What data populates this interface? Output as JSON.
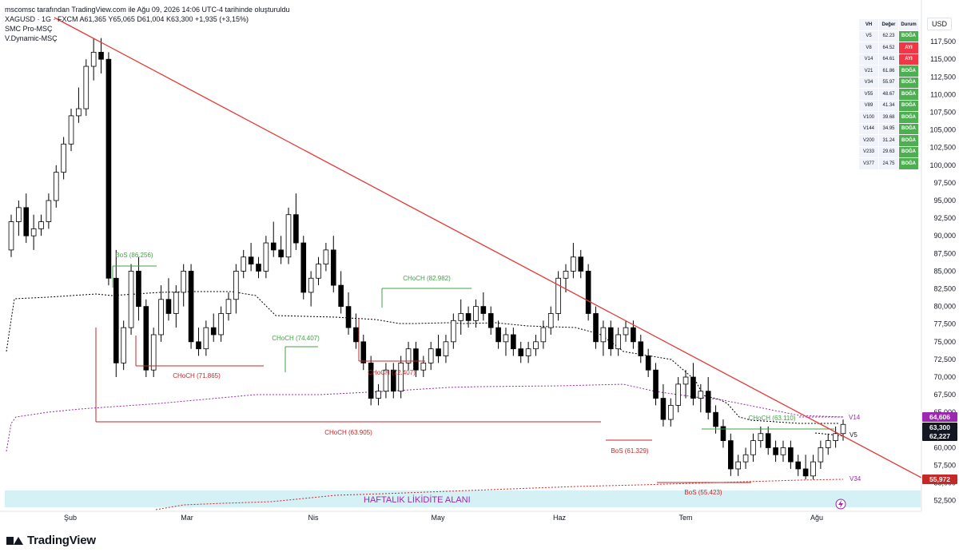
{
  "header": {
    "attribution": "mscomsc tarafından TradingView.com ile Ağu 09, 2026 14:06 UTC-4 tarihinde oluşturuldu",
    "symbol_line": "XAGUSD · 1G · FXCM  A61,365  Y65,065  D61,004  K63,300  +1,935 (+3,15%)",
    "indicator1": "SMC Pro-MSÇ",
    "indicator2": "V.Dynamic-MSÇ"
  },
  "currency": "USD",
  "brand": "TradingView",
  "colors": {
    "up": "#ffffff",
    "down": "#000000",
    "trendline": "#e53935",
    "bullish": "#43a047",
    "bearish": "#c62828",
    "purple": "#9c27b0",
    "zone": "#d6f1f6"
  },
  "ma_table": {
    "headers": [
      "VH",
      "Değer",
      "Durum"
    ],
    "rows": [
      {
        "name": "V5",
        "value": "62.23",
        "status": "BOĞA",
        "bull": true
      },
      {
        "name": "V8",
        "value": "64.52",
        "status": "AYI",
        "bull": false
      },
      {
        "name": "V14",
        "value": "64.61",
        "status": "AYI",
        "bull": false
      },
      {
        "name": "V21",
        "value": "61.86",
        "status": "BOĞA",
        "bull": true
      },
      {
        "name": "V34",
        "value": "55.97",
        "status": "BOĞA",
        "bull": true
      },
      {
        "name": "V55",
        "value": "48.67",
        "status": "BOĞA",
        "bull": true
      },
      {
        "name": "V89",
        "value": "41.34",
        "status": "BOĞA",
        "bull": true
      },
      {
        "name": "V100",
        "value": "39.68",
        "status": "BOĞA",
        "bull": true
      },
      {
        "name": "V144",
        "value": "34.95",
        "status": "BOĞA",
        "bull": true
      },
      {
        "name": "V200",
        "value": "31.24",
        "status": "BOĞA",
        "bull": true
      },
      {
        "name": "V233",
        "value": "29.63",
        "status": "BOĞA",
        "bull": true
      },
      {
        "name": "V377",
        "value": "24.75",
        "status": "BOĞA",
        "bull": true
      }
    ]
  },
  "chart_data": {
    "type": "candlestick",
    "y_axis_ticks": [
      "117,500",
      "115,000",
      "112,500",
      "110,000",
      "107,500",
      "105,000",
      "102,500",
      "100,000",
      "97,500",
      "95,000",
      "92,500",
      "90,000",
      "87,500",
      "85,000",
      "82,500",
      "80,000",
      "77,500",
      "75,000",
      "72,500",
      "70,000",
      "67,500",
      "65,000",
      "62,500",
      "60,000",
      "57,500",
      "55,000",
      "52,500"
    ],
    "y_range": [
      51000,
      120000
    ],
    "x_axis_labels": [
      "Şub",
      "Mar",
      "Nis",
      "May",
      "Haz",
      "Tem",
      "Ağu"
    ],
    "price_tags": [
      {
        "value": "64,606",
        "color": "#9c27b0"
      },
      {
        "value": "63,300",
        "color": "#131722"
      },
      {
        "value": "62,227",
        "color": "#131722"
      },
      {
        "value": "55,972",
        "color": "#c62828"
      }
    ],
    "annotations": {
      "bos1": "BoS (86.256)",
      "choch1": "CHoCH (71.865)",
      "choch2": "CHoCH (74.407)",
      "choch3": "CHoCH (63.905)",
      "choch4": "CHoCH (72.407)",
      "choch5": "CHoCH (82.982)",
      "bos2": "BoS (61.329)",
      "bos3": "BoS (55.423)",
      "choch6": "CHoCH (63.110)",
      "zone": "HAFTALIK LİKİDİTE ALANI",
      "v14": "V14",
      "v5": "V5",
      "v34": "V34"
    },
    "candles": [
      [
        88,
        93,
        87,
        92
      ],
      [
        92,
        95,
        90,
        94
      ],
      [
        94,
        96,
        89,
        90
      ],
      [
        90,
        93,
        88,
        91
      ],
      [
        91,
        93,
        90,
        92
      ],
      [
        92,
        96,
        91,
        95
      ],
      [
        95,
        100,
        94,
        99
      ],
      [
        99,
        104,
        98,
        103
      ],
      [
        103,
        108,
        102,
        107
      ],
      [
        107,
        111,
        106,
        108
      ],
      [
        108,
        115,
        107,
        114
      ],
      [
        114,
        118,
        112,
        116
      ],
      [
        116,
        118,
        113,
        115
      ],
      [
        115,
        116,
        83,
        84
      ],
      [
        84,
        88,
        70,
        72
      ],
      [
        72,
        78,
        71,
        77
      ],
      [
        77,
        86,
        76,
        85
      ],
      [
        85,
        87,
        78,
        80
      ],
      [
        80,
        81,
        70,
        71
      ],
      [
        71,
        77,
        70,
        76
      ],
      [
        76,
        83,
        75,
        81
      ],
      [
        81,
        84,
        78,
        79
      ],
      [
        79,
        83,
        77,
        82
      ],
      [
        82,
        86,
        80,
        85
      ],
      [
        85,
        86,
        74,
        75
      ],
      [
        75,
        77,
        73,
        74
      ],
      [
        74,
        78,
        73,
        77
      ],
      [
        77,
        79,
        75,
        76
      ],
      [
        76,
        80,
        75,
        79
      ],
      [
        79,
        82,
        78,
        81
      ],
      [
        81,
        86,
        79,
        85
      ],
      [
        85,
        88,
        84,
        87
      ],
      [
        87,
        89,
        85,
        86
      ],
      [
        86,
        87,
        84,
        85
      ],
      [
        85,
        90,
        84,
        89
      ],
      [
        89,
        92,
        87,
        88
      ],
      [
        88,
        90,
        86,
        87
      ],
      [
        87,
        94,
        86,
        93
      ],
      [
        93,
        96,
        88,
        89
      ],
      [
        89,
        90,
        81,
        82
      ],
      [
        82,
        85,
        80,
        84
      ],
      [
        84,
        87,
        83,
        86
      ],
      [
        86,
        89,
        85,
        88
      ],
      [
        88,
        90,
        82,
        83
      ],
      [
        83,
        85,
        79,
        80
      ],
      [
        80,
        82,
        76,
        77
      ],
      [
        77,
        79,
        74,
        75
      ],
      [
        75,
        76,
        71,
        72
      ],
      [
        72,
        73,
        66,
        67
      ],
      [
        67,
        69,
        66,
        68
      ],
      [
        68,
        72,
        67,
        71
      ],
      [
        71,
        72,
        67,
        68
      ],
      [
        68,
        73,
        67,
        72
      ],
      [
        72,
        75,
        71,
        74
      ],
      [
        74,
        75,
        70,
        71
      ],
      [
        71,
        73,
        70,
        72
      ],
      [
        72,
        75,
        71,
        74
      ],
      [
        74,
        76,
        72,
        73
      ],
      [
        73,
        76,
        72,
        75
      ],
      [
        75,
        79,
        74,
        78
      ],
      [
        78,
        81,
        76,
        79
      ],
      [
        79,
        80,
        77,
        78
      ],
      [
        78,
        81,
        77,
        80
      ],
      [
        80,
        82,
        78,
        79
      ],
      [
        79,
        80,
        76,
        77
      ],
      [
        77,
        78,
        74,
        75
      ],
      [
        75,
        77,
        73,
        76
      ],
      [
        76,
        77,
        73,
        74
      ],
      [
        74,
        75,
        72,
        73
      ],
      [
        73,
        75,
        72,
        74
      ],
      [
        74,
        76,
        73,
        75
      ],
      [
        75,
        78,
        74,
        77
      ],
      [
        77,
        80,
        76,
        79
      ],
      [
        79,
        85,
        78,
        84
      ],
      [
        84,
        86,
        82,
        85
      ],
      [
        85,
        89,
        84,
        87
      ],
      [
        87,
        88,
        84,
        85
      ],
      [
        85,
        86,
        78,
        79
      ],
      [
        79,
        80,
        74,
        75
      ],
      [
        75,
        78,
        73,
        77
      ],
      [
        77,
        78,
        73,
        74
      ],
      [
        74,
        77,
        73,
        76
      ],
      [
        76,
        78,
        75,
        77
      ],
      [
        77,
        78,
        74,
        75
      ],
      [
        75,
        76,
        72,
        73
      ],
      [
        73,
        74,
        70,
        71
      ],
      [
        71,
        72,
        66,
        67
      ],
      [
        67,
        69,
        63,
        64
      ],
      [
        64,
        67,
        63,
        66
      ],
      [
        66,
        70,
        65,
        69
      ],
      [
        69,
        71,
        67,
        70
      ],
      [
        70,
        72,
        66,
        67
      ],
      [
        67,
        69,
        65,
        68
      ],
      [
        68,
        70,
        64,
        65
      ],
      [
        65,
        66,
        62,
        63
      ],
      [
        63,
        64,
        60,
        61
      ],
      [
        61,
        62,
        56,
        57
      ],
      [
        57,
        59,
        56,
        58
      ],
      [
        58,
        60,
        57,
        59
      ],
      [
        59,
        62,
        58,
        61
      ],
      [
        61,
        63,
        60,
        62
      ],
      [
        62,
        63,
        59,
        60
      ],
      [
        60,
        61,
        58,
        59
      ],
      [
        59,
        61,
        58,
        60
      ],
      [
        60,
        61,
        57,
        58
      ],
      [
        58,
        59,
        56,
        57
      ],
      [
        57,
        59,
        55.5,
        56
      ],
      [
        56,
        59,
        55.5,
        58
      ],
      [
        58,
        61,
        57,
        60
      ],
      [
        60,
        62,
        59,
        61
      ],
      [
        61,
        63,
        60,
        62
      ],
      [
        62,
        64,
        61,
        63.3
      ]
    ]
  }
}
